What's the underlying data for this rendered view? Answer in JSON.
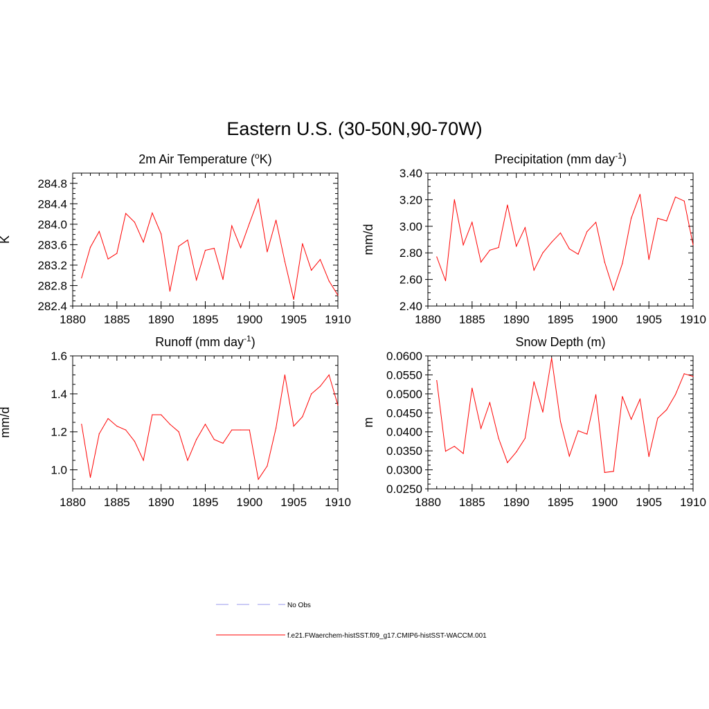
{
  "title": "Eastern U.S. (30-50N,90-70W)",
  "chart_data": [
    {
      "type": "line",
      "title": "2m Air Temperature (",
      "title_sup": "o",
      "title_after": "K)",
      "ylabel": "K",
      "xlim": [
        1880,
        1910
      ],
      "ylim": [
        282.4,
        285.0
      ],
      "xticks": [
        "1880",
        "1885",
        "1890",
        "1895",
        "1900",
        "1905",
        "1910"
      ],
      "yticks": [
        "282.4",
        "282.8",
        "283.2",
        "283.6",
        "284.0",
        "284.4",
        "284.8"
      ],
      "series": [
        {
          "x": [
            1881,
            1882,
            1883,
            1884,
            1885,
            1886,
            1887,
            1888,
            1889,
            1890,
            1891,
            1892,
            1893,
            1894,
            1895,
            1896,
            1897,
            1898,
            1899,
            1900,
            1901,
            1902,
            1903,
            1904,
            1905,
            1906,
            1907,
            1908,
            1909,
            1910
          ],
          "values": [
            282.95,
            283.55,
            283.86,
            283.32,
            283.43,
            284.21,
            284.04,
            283.65,
            284.22,
            283.81,
            282.69,
            283.57,
            283.69,
            282.91,
            283.49,
            283.53,
            282.92,
            283.97,
            283.54,
            284.02,
            284.49,
            283.46,
            284.08,
            283.27,
            282.53,
            283.62,
            283.1,
            283.31,
            282.89,
            282.61
          ]
        }
      ]
    },
    {
      "type": "line",
      "title": "Precipitation (mm day",
      "title_sup": "-1",
      "title_after": ")",
      "ylabel": "mm/d",
      "xlim": [
        1880,
        1910
      ],
      "ylim": [
        2.4,
        3.4
      ],
      "xticks": [
        "1880",
        "1885",
        "1890",
        "1895",
        "1900",
        "1905",
        "1910"
      ],
      "yticks": [
        "2.40",
        "2.60",
        "2.80",
        "3.00",
        "3.20",
        "3.40"
      ],
      "series": [
        {
          "x": [
            1881,
            1882,
            1883,
            1884,
            1885,
            1886,
            1887,
            1888,
            1889,
            1890,
            1891,
            1892,
            1893,
            1894,
            1895,
            1896,
            1897,
            1898,
            1899,
            1900,
            1901,
            1902,
            1903,
            1904,
            1905,
            1906,
            1907,
            1908,
            1909,
            1910
          ],
          "values": [
            2.77,
            2.59,
            3.2,
            2.86,
            3.03,
            2.73,
            2.82,
            2.84,
            3.16,
            2.85,
            2.99,
            2.67,
            2.8,
            2.88,
            2.95,
            2.83,
            2.79,
            2.96,
            3.03,
            2.73,
            2.52,
            2.72,
            3.06,
            3.24,
            2.75,
            3.06,
            3.04,
            3.22,
            3.19,
            2.86
          ]
        }
      ]
    },
    {
      "type": "line",
      "title": "Runoff (mm day",
      "title_sup": "-1",
      "title_after": ")",
      "ylabel": "mm/d",
      "xlim": [
        1880,
        1910
      ],
      "ylim": [
        0.9,
        1.6
      ],
      "xticks": [
        "1880",
        "1885",
        "1890",
        "1895",
        "1900",
        "1905",
        "1910"
      ],
      "yticks": [
        "1.0",
        "1.2",
        "1.4",
        "1.6"
      ],
      "series": [
        {
          "x": [
            1881,
            1882,
            1883,
            1884,
            1885,
            1886,
            1887,
            1888,
            1889,
            1890,
            1891,
            1892,
            1893,
            1894,
            1895,
            1896,
            1897,
            1898,
            1899,
            1900,
            1901,
            1902,
            1903,
            1904,
            1905,
            1906,
            1907,
            1908,
            1909,
            1910
          ],
          "values": [
            1.24,
            0.96,
            1.19,
            1.27,
            1.23,
            1.21,
            1.15,
            1.05,
            1.29,
            1.29,
            1.24,
            1.2,
            1.05,
            1.16,
            1.24,
            1.16,
            1.14,
            1.21,
            1.21,
            1.21,
            0.95,
            1.02,
            1.22,
            1.5,
            1.23,
            1.28,
            1.4,
            1.44,
            1.5,
            1.34
          ]
        }
      ]
    },
    {
      "type": "line",
      "title": "Snow Depth (m)",
      "title_sup": "",
      "title_after": "",
      "ylabel": "m",
      "xlim": [
        1880,
        1910
      ],
      "ylim": [
        0.025,
        0.06
      ],
      "xticks": [
        "1880",
        "1885",
        "1890",
        "1895",
        "1900",
        "1905",
        "1910"
      ],
      "yticks": [
        "0.0250",
        "0.0300",
        "0.0350",
        "0.0400",
        "0.0450",
        "0.0500",
        "0.0550",
        "0.0600"
      ],
      "series": [
        {
          "x": [
            1881,
            1882,
            1883,
            1884,
            1885,
            1886,
            1887,
            1888,
            1889,
            1890,
            1891,
            1892,
            1893,
            1894,
            1895,
            1896,
            1897,
            1898,
            1899,
            1900,
            1901,
            1902,
            1903,
            1904,
            1905,
            1906,
            1907,
            1908,
            1909,
            1910
          ],
          "values": [
            0.0535,
            0.0349,
            0.0362,
            0.0343,
            0.0515,
            0.0409,
            0.0477,
            0.0383,
            0.0319,
            0.0347,
            0.0383,
            0.0532,
            0.0452,
            0.0594,
            0.0427,
            0.0336,
            0.0403,
            0.0394,
            0.0498,
            0.0293,
            0.0296,
            0.0493,
            0.0433,
            0.0486,
            0.0335,
            0.0436,
            0.0458,
            0.0498,
            0.0553,
            0.0546
          ]
        }
      ]
    }
  ],
  "legend": [
    {
      "label": "No Obs",
      "color": "#9999ee",
      "style": "dashed"
    },
    {
      "label": "f.e21.FWaerchem-histSST.f09_g17.CMIP6-histSST-WACCM.001",
      "color": "#ff0000",
      "style": "solid"
    }
  ],
  "colors": {
    "line": "#ff0000",
    "axis": "#000000"
  }
}
